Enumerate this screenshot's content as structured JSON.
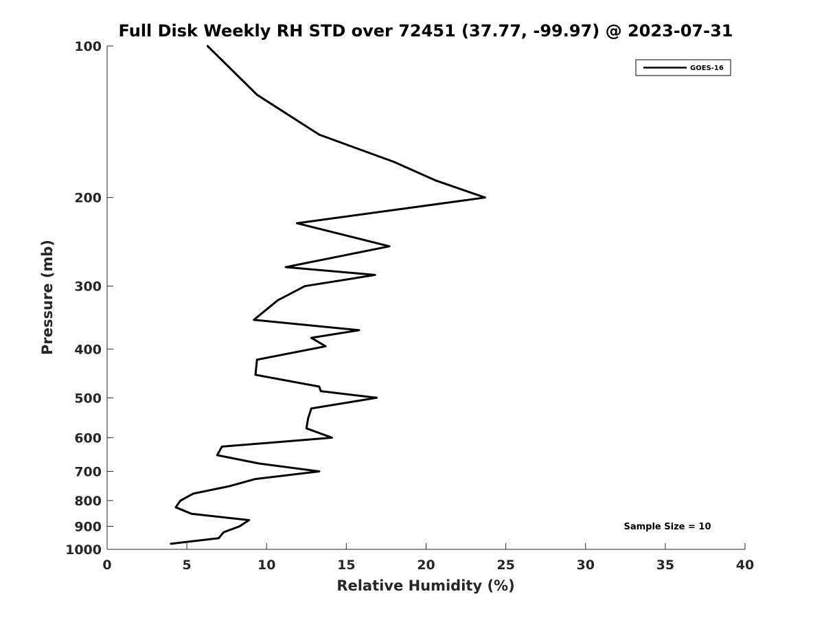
{
  "chart_data": {
    "type": "line",
    "title": "Full Disk Weekly RH STD over 72451 (37.77, -99.97) @ 2023-07-31",
    "xlabel": "Relative Humidity (%)",
    "ylabel": "Pressure (mb)",
    "xlim": [
      0,
      40
    ],
    "ylim": [
      100,
      1000
    ],
    "y_scale": "log",
    "y_inverted": true,
    "x_ticks": [
      "0",
      "5",
      "10",
      "15",
      "20",
      "25",
      "30",
      "35",
      "40"
    ],
    "y_ticks": [
      "100",
      "200",
      "300",
      "400",
      "500",
      "600",
      "700",
      "800",
      "900",
      "1000"
    ],
    "grid": false,
    "legend": {
      "location": "top-right",
      "entries": [
        "GOES-16"
      ]
    },
    "annotation": "Sample Size = 10",
    "series": [
      {
        "name": "GOES-16",
        "color": "#000000",
        "points": [
          {
            "p": 100,
            "rh": 6.3
          },
          {
            "p": 125,
            "rh": 9.4
          },
          {
            "p": 150,
            "rh": 13.3
          },
          {
            "p": 170,
            "rh": 18.0
          },
          {
            "p": 185,
            "rh": 20.6
          },
          {
            "p": 200,
            "rh": 23.7
          },
          {
            "p": 225,
            "rh": 11.9
          },
          {
            "p": 250,
            "rh": 17.7
          },
          {
            "p": 275,
            "rh": 11.2
          },
          {
            "p": 285,
            "rh": 16.8
          },
          {
            "p": 300,
            "rh": 12.4
          },
          {
            "p": 320,
            "rh": 10.7
          },
          {
            "p": 350,
            "rh": 9.2
          },
          {
            "p": 367,
            "rh": 15.8
          },
          {
            "p": 380,
            "rh": 12.8
          },
          {
            "p": 395,
            "rh": 13.7
          },
          {
            "p": 420,
            "rh": 9.4
          },
          {
            "p": 450,
            "rh": 9.3
          },
          {
            "p": 475,
            "rh": 13.3
          },
          {
            "p": 485,
            "rh": 13.4
          },
          {
            "p": 500,
            "rh": 16.9
          },
          {
            "p": 525,
            "rh": 12.8
          },
          {
            "p": 550,
            "rh": 12.6
          },
          {
            "p": 575,
            "rh": 12.5
          },
          {
            "p": 600,
            "rh": 14.1
          },
          {
            "p": 625,
            "rh": 7.2
          },
          {
            "p": 650,
            "rh": 6.9
          },
          {
            "p": 675,
            "rh": 9.5
          },
          {
            "p": 700,
            "rh": 13.3
          },
          {
            "p": 725,
            "rh": 9.3
          },
          {
            "p": 750,
            "rh": 7.6
          },
          {
            "p": 775,
            "rh": 5.4
          },
          {
            "p": 800,
            "rh": 4.6
          },
          {
            "p": 825,
            "rh": 4.3
          },
          {
            "p": 850,
            "rh": 5.3
          },
          {
            "p": 875,
            "rh": 8.9
          },
          {
            "p": 900,
            "rh": 8.3
          },
          {
            "p": 925,
            "rh": 7.3
          },
          {
            "p": 950,
            "rh": 7.0
          },
          {
            "p": 975,
            "rh": 4.0
          }
        ]
      }
    ]
  }
}
